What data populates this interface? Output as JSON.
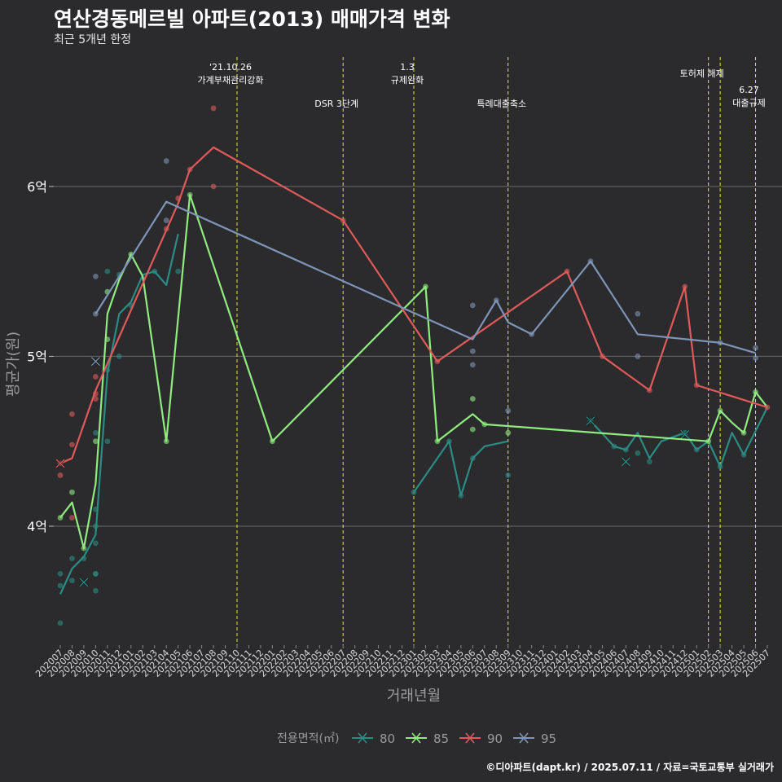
{
  "title": "연산경동메르빌 아파트(2013) 매매가격 변화",
  "subtitle": "최근 5개년 한정",
  "caption": "©디아파트(dapt.kr) / 2025.07.11 / 자료=국토교통부 실거래가",
  "chart_data": {
    "type": "line",
    "xlabel": "거래년월",
    "ylabel": "평균가(원)",
    "ylim": [
      3.3,
      6.8
    ],
    "yticks": [
      {
        "value": 4,
        "label": "4억"
      },
      {
        "value": 5,
        "label": "5억"
      },
      {
        "value": 6,
        "label": "6억"
      }
    ],
    "grid": true,
    "categories": [
      "202007",
      "202008",
      "202009",
      "202010",
      "202011",
      "202012",
      "202101",
      "202102",
      "202103",
      "202104",
      "202105",
      "202106",
      "202107",
      "202108",
      "202109",
      "202110",
      "202111",
      "202112",
      "202201",
      "202202",
      "202203",
      "202204",
      "202205",
      "202206",
      "202207",
      "202208",
      "202209",
      "202210",
      "202211",
      "202212",
      "202301",
      "202302",
      "202303",
      "202304",
      "202305",
      "202306",
      "202307",
      "202308",
      "202309",
      "202310",
      "202311",
      "202312",
      "202401",
      "202402",
      "202403",
      "202404",
      "202405",
      "202406",
      "202407",
      "202408",
      "202409",
      "202410",
      "202411",
      "202412",
      "202501",
      "202502",
      "202503",
      "202504",
      "202505",
      "202506",
      "202507"
    ],
    "legend": {
      "title": "전용면적(㎡)",
      "position": "bottom"
    },
    "events": [
      {
        "month": "202110",
        "label": "'21.10.26\n가계부채관리강화",
        "row": 1
      },
      {
        "month": "202207",
        "label": "DSR 3단계",
        "row": 2
      },
      {
        "month": "202301",
        "label": "1.3\n규제완화",
        "row": 1
      },
      {
        "month": "202309",
        "label": "특례대출축소",
        "row": 2
      },
      {
        "month": "202502",
        "label": "토허제 해제",
        "row": 1
      },
      {
        "month": "202503",
        "label": "",
        "row": 1
      },
      {
        "month": "202506",
        "label": "6.27\n대출규제",
        "row": 3
      }
    ],
    "series": [
      {
        "name": "80",
        "color": "#2a8c84",
        "line": [
          [
            "202007",
            3.6
          ],
          [
            "202008",
            3.75
          ],
          [
            "202009",
            3.82
          ],
          [
            "202010",
            3.95
          ],
          [
            "202011",
            4.9
          ],
          [
            "202012",
            5.25
          ],
          [
            "202101",
            5.32
          ],
          [
            "202102",
            5.48
          ],
          [
            "202103",
            5.5
          ],
          [
            "202104",
            5.42
          ],
          [
            "202105",
            5.72
          ],
          null,
          [
            "202301",
            4.2
          ],
          [
            "202304",
            4.5
          ],
          [
            "202305",
            4.18
          ],
          [
            "202306",
            4.4
          ],
          [
            "202307",
            4.47
          ],
          [
            "202309",
            4.5
          ],
          null,
          [
            "202404",
            4.62
          ],
          [
            "202406",
            4.47
          ],
          [
            "202407",
            4.45
          ],
          [
            "202408",
            4.55
          ],
          [
            "202409",
            4.4
          ],
          [
            "202410",
            4.5
          ],
          [
            "202412",
            4.55
          ],
          [
            "202501",
            4.45
          ],
          [
            "202502",
            4.5
          ],
          [
            "202503",
            4.35
          ],
          [
            "202504",
            4.55
          ],
          [
            "202505",
            4.42
          ],
          [
            "202507",
            4.7
          ]
        ],
        "points": [
          [
            "202007",
            3.43
          ],
          [
            "202007",
            3.65
          ],
          [
            "202007",
            3.72
          ],
          [
            "202008",
            3.81
          ],
          [
            "202008",
            3.68
          ],
          [
            "202009",
            3.81
          ],
          [
            "202010",
            3.62
          ],
          [
            "202010",
            3.72
          ],
          [
            "202010",
            3.72
          ],
          [
            "202010",
            3.9
          ],
          [
            "202010",
            4.0
          ],
          [
            "202010",
            4.1
          ],
          [
            "202010",
            4.55
          ],
          [
            "202011",
            4.5
          ],
          [
            "202011",
            5.5
          ],
          [
            "202011",
            4.92
          ],
          [
            "202012",
            5.0
          ],
          [
            "202012",
            5.48
          ],
          [
            "202101",
            5.3
          ],
          [
            "202103",
            5.5
          ],
          [
            "202105",
            5.5
          ],
          [
            "202301",
            4.2
          ],
          [
            "202304",
            4.5
          ],
          [
            "202305",
            4.18
          ],
          [
            "202306",
            4.4
          ],
          [
            "202309",
            4.3
          ],
          [
            "202404",
            4.62
          ],
          [
            "202406",
            4.47
          ],
          [
            "202407",
            4.45
          ],
          [
            "202408",
            4.43
          ],
          [
            "202409",
            4.38
          ],
          [
            "202412",
            4.55
          ],
          [
            "202501",
            4.45
          ],
          [
            "202503",
            4.35
          ],
          [
            "202505",
            4.42
          ]
        ],
        "crosses": [
          [
            "202009",
            3.67
          ],
          [
            "202404",
            4.62
          ],
          [
            "202407",
            4.38
          ],
          [
            "202412",
            4.54
          ]
        ]
      },
      {
        "name": "85",
        "color": "#90ec7e",
        "line": [
          [
            "202007",
            4.05
          ],
          [
            "202008",
            4.14
          ],
          [
            "202009",
            3.87
          ],
          [
            "202010",
            4.25
          ],
          [
            "202011",
            5.25
          ],
          [
            "202012",
            5.45
          ],
          [
            "202101",
            5.6
          ],
          [
            "202102",
            5.47
          ],
          [
            "202104",
            4.5
          ],
          [
            "202106",
            5.95
          ],
          [
            "202201",
            4.5
          ],
          [
            "202302",
            5.41
          ],
          [
            "202303",
            4.5
          ],
          [
            "202306",
            4.66
          ],
          [
            "202307",
            4.6
          ],
          [
            "202502",
            4.5
          ],
          [
            "202503",
            4.68
          ],
          [
            "202504",
            4.61
          ],
          [
            "202505",
            4.55
          ],
          [
            "202506",
            4.79
          ],
          [
            "202507",
            4.7
          ]
        ],
        "points": [
          [
            "202007",
            4.05
          ],
          [
            "202008",
            4.2
          ],
          [
            "202009",
            3.87
          ],
          [
            "202010",
            4.5
          ],
          [
            "202011",
            5.1
          ],
          [
            "202011",
            5.38
          ],
          [
            "202101",
            5.6
          ],
          [
            "202104",
            4.5
          ],
          [
            "202106",
            5.95
          ],
          [
            "202201",
            4.5
          ],
          [
            "202302",
            5.41
          ],
          [
            "202303",
            4.5
          ],
          [
            "202306",
            4.75
          ],
          [
            "202306",
            4.57
          ],
          [
            "202307",
            4.6
          ],
          [
            "202309",
            4.55
          ],
          [
            "202502",
            4.5
          ],
          [
            "202503",
            4.68
          ],
          [
            "202505",
            4.55
          ],
          [
            "202506",
            4.79
          ]
        ],
        "crosses": []
      },
      {
        "name": "90",
        "color": "#e05a5a",
        "line": [
          [
            "202007",
            4.37
          ],
          [
            "202008",
            4.4
          ],
          [
            "202010",
            4.8
          ],
          [
            "202105",
            5.9
          ],
          [
            "202106",
            6.1
          ],
          [
            "202108",
            6.23
          ],
          [
            "202207",
            5.8
          ],
          [
            "202303",
            4.97
          ],
          [
            "202402",
            5.5
          ],
          [
            "202405",
            5.0
          ],
          [
            "202409",
            4.8
          ],
          [
            "202412",
            5.41
          ],
          [
            "202501",
            4.83
          ],
          [
            "202507",
            4.7
          ]
        ],
        "points": [
          [
            "202007",
            4.37
          ],
          [
            "202007",
            4.3
          ],
          [
            "202008",
            4.66
          ],
          [
            "202008",
            4.48
          ],
          [
            "202008",
            4.05
          ],
          [
            "202010",
            4.75
          ],
          [
            "202010",
            4.78
          ],
          [
            "202010",
            4.88
          ],
          [
            "202104",
            5.75
          ],
          [
            "202105",
            5.93
          ],
          [
            "202106",
            6.1
          ],
          [
            "202108",
            6.46
          ],
          [
            "202108",
            6.0
          ],
          [
            "202207",
            5.8
          ],
          [
            "202303",
            4.97
          ],
          [
            "202402",
            5.5
          ],
          [
            "202405",
            5.0
          ],
          [
            "202409",
            4.8
          ],
          [
            "202412",
            5.41
          ],
          [
            "202501",
            4.83
          ],
          [
            "202507",
            4.7
          ]
        ],
        "crosses": [
          [
            "202007",
            4.37
          ]
        ]
      },
      {
        "name": "95",
        "color": "#7d95b8",
        "line": [
          [
            "202010",
            5.25
          ],
          [
            "202104",
            5.91
          ],
          [
            "202306",
            5.1
          ],
          [
            "202308",
            5.33
          ],
          [
            "202309",
            5.2
          ],
          [
            "202311",
            5.13
          ],
          [
            "202404",
            5.56
          ],
          [
            "202408",
            5.13
          ],
          [
            "202503",
            5.08
          ],
          [
            "202506",
            5.02
          ]
        ],
        "points": [
          [
            "202010",
            5.25
          ],
          [
            "202010",
            5.47
          ],
          [
            "202104",
            6.15
          ],
          [
            "202104",
            5.8
          ],
          [
            "202306",
            5.3
          ],
          [
            "202306",
            5.03
          ],
          [
            "202306",
            4.95
          ],
          [
            "202308",
            5.33
          ],
          [
            "202309",
            4.68
          ],
          [
            "202311",
            5.13
          ],
          [
            "202404",
            5.56
          ],
          [
            "202408",
            5.25
          ],
          [
            "202408",
            5.0
          ],
          [
            "202503",
            5.08
          ],
          [
            "202506",
            5.05
          ],
          [
            "202506",
            4.99
          ]
        ],
        "crosses": [
          [
            "202010",
            4.97
          ]
        ]
      }
    ]
  }
}
